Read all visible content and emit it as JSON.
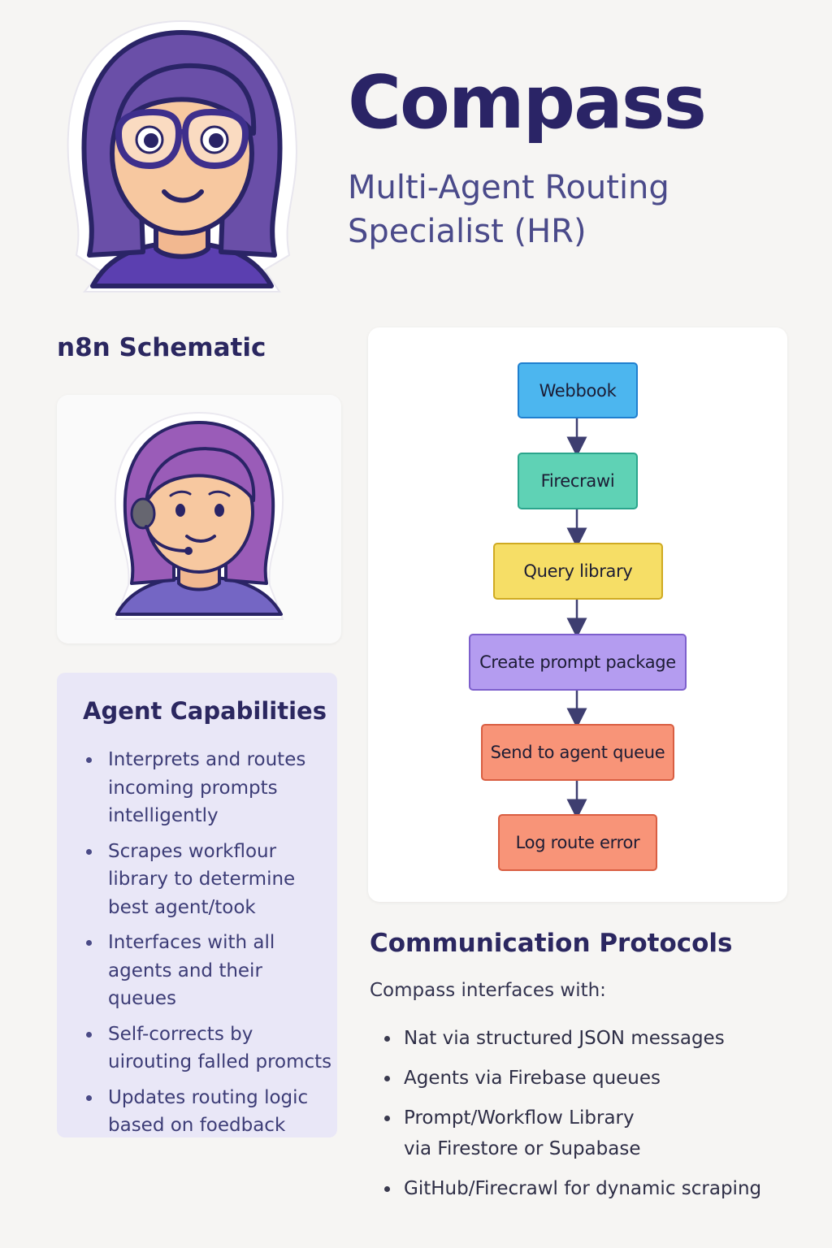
{
  "header": {
    "title": "Compass",
    "subtitle_line1": "Multi-Agent Routing",
    "subtitle_line2": "Specialist (HR)"
  },
  "schematic": {
    "title": "n8n Schematic",
    "nodes": [
      {
        "label": "Webbook",
        "color": "#4cb6ef",
        "border": "#1f7fcf"
      },
      {
        "label": "Firecrawi",
        "color": "#5fd2b5",
        "border": "#2ba58c"
      },
      {
        "label": "Query library",
        "color": "#f6de66",
        "border": "#cfaa22"
      },
      {
        "label": "Create prompt package",
        "color": "#b49cf0",
        "border": "#7d5fcc"
      },
      {
        "label": "Send to agent queue",
        "color": "#f89478",
        "border": "#d95e42"
      },
      {
        "label": "Log route error",
        "color": "#f89478",
        "border": "#d95e42"
      }
    ]
  },
  "capabilities": {
    "title": "Agent Capabilities",
    "items": [
      {
        "line1": "Interprets and routes",
        "line2": "incoming prompts",
        "line3": "intelligently"
      },
      {
        "line1": "Scrapes workflour",
        "line2": "library to determine",
        "line3": "best agent/took"
      },
      {
        "line1": "Interfaces with all",
        "line2": "agents and their queues"
      },
      {
        "line1": "Self-corrects by",
        "line2": "uirouting falled promcts"
      },
      {
        "line1": "Updates routing logic",
        "line2": "based on foedback"
      }
    ]
  },
  "communication": {
    "title": "Communication Protocols",
    "intro": "Compass interfaces with:",
    "items": [
      {
        "line1": "Nat via structured JSON messages"
      },
      {
        "line1": "Agents via Firebase queues"
      },
      {
        "line1": "Prompt/Workflow Library",
        "line2": "via Firestore or Supabase"
      },
      {
        "line1": "GitHub/Firecrawl for dynamic scraping"
      }
    ]
  },
  "colors": {
    "background": "#f6f5f3",
    "title": "#2a2466",
    "subtitle": "#4a4a8a",
    "capabilities_panel": "#e9e7f7",
    "avatar_hair": "#6a4fa8",
    "avatar_skin": "#f7c8a0",
    "avatar_glasses": "#3e2f8c"
  },
  "icons": {
    "main_avatar": "woman-with-glasses-avatar-icon",
    "support_avatar": "woman-with-headset-avatar-icon",
    "flow_arrow": "arrow-down-icon"
  }
}
